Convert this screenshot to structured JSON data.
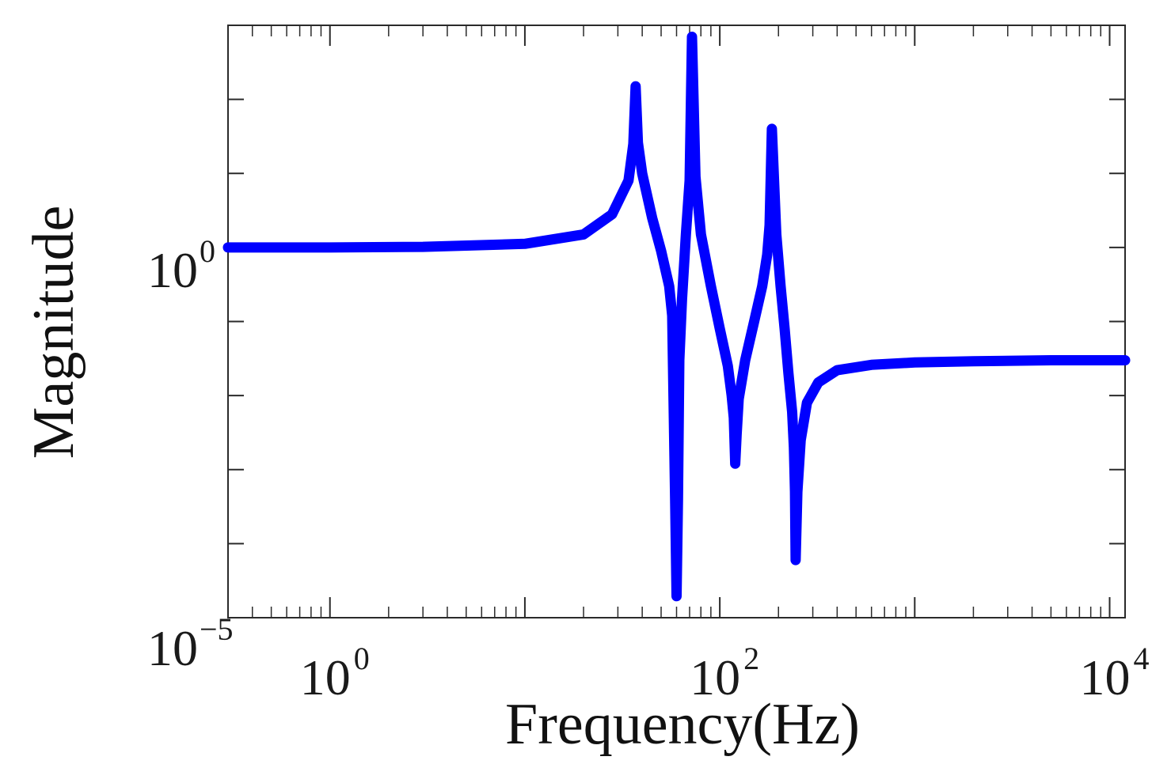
{
  "chart_data": {
    "type": "line",
    "xlabel": "Frequency(Hz)",
    "ylabel": "Magnitude",
    "x_scale": "log",
    "y_scale": "log",
    "xlim": [
      0.3,
      12000
    ],
    "ylim": [
      1e-05,
      1000
    ],
    "grid": false,
    "line_color": "#0000ff",
    "x_ticks": [
      {
        "base": "10",
        "exp": "0",
        "value": 1
      },
      {
        "base": "10",
        "exp": "2",
        "value": 100
      },
      {
        "base": "10",
        "exp": "4",
        "value": 10000
      }
    ],
    "y_ticks": [
      {
        "base": "10",
        "exp": "−5",
        "value": 1e-05
      },
      {
        "base": "10",
        "exp": "0",
        "value": 1
      }
    ],
    "series": [
      {
        "x": [
          0.3,
          1,
          3,
          10,
          20,
          28,
          34,
          36,
          37,
          38,
          40,
          45,
          50,
          55,
          57,
          59,
          60,
          61,
          62,
          64,
          67,
          70,
          72,
          75,
          80,
          90,
          100,
          110,
          115,
          118,
          120,
          122,
          125,
          135,
          150,
          165,
          175,
          180,
          185,
          195,
          205,
          215,
          225,
          235,
          240,
          243,
          245,
          250,
          260,
          280,
          320,
          400,
          600,
          1000,
          2000,
          5000,
          12000
        ],
        "y": [
          1.0,
          1.0,
          1.02,
          1.12,
          1.5,
          2.8,
          8.0,
          25.0,
          150.0,
          26.0,
          10.0,
          2.5,
          0.9,
          0.3,
          0.12,
          0.0004,
          1.95e-05,
          0.0004,
          0.03,
          0.2,
          1.5,
          8.0,
          700.0,
          9.0,
          1.5,
          0.3,
          0.08,
          0.025,
          0.01,
          0.005,
          0.0012,
          0.003,
          0.009,
          0.03,
          0.1,
          0.3,
          0.8,
          2.0,
          40.0,
          1.5,
          0.3,
          0.08,
          0.02,
          0.006,
          0.002,
          0.0005,
          6e-05,
          0.0005,
          0.0025,
          0.008,
          0.015,
          0.022,
          0.026,
          0.028,
          0.029,
          0.03,
          0.03
        ]
      }
    ]
  }
}
